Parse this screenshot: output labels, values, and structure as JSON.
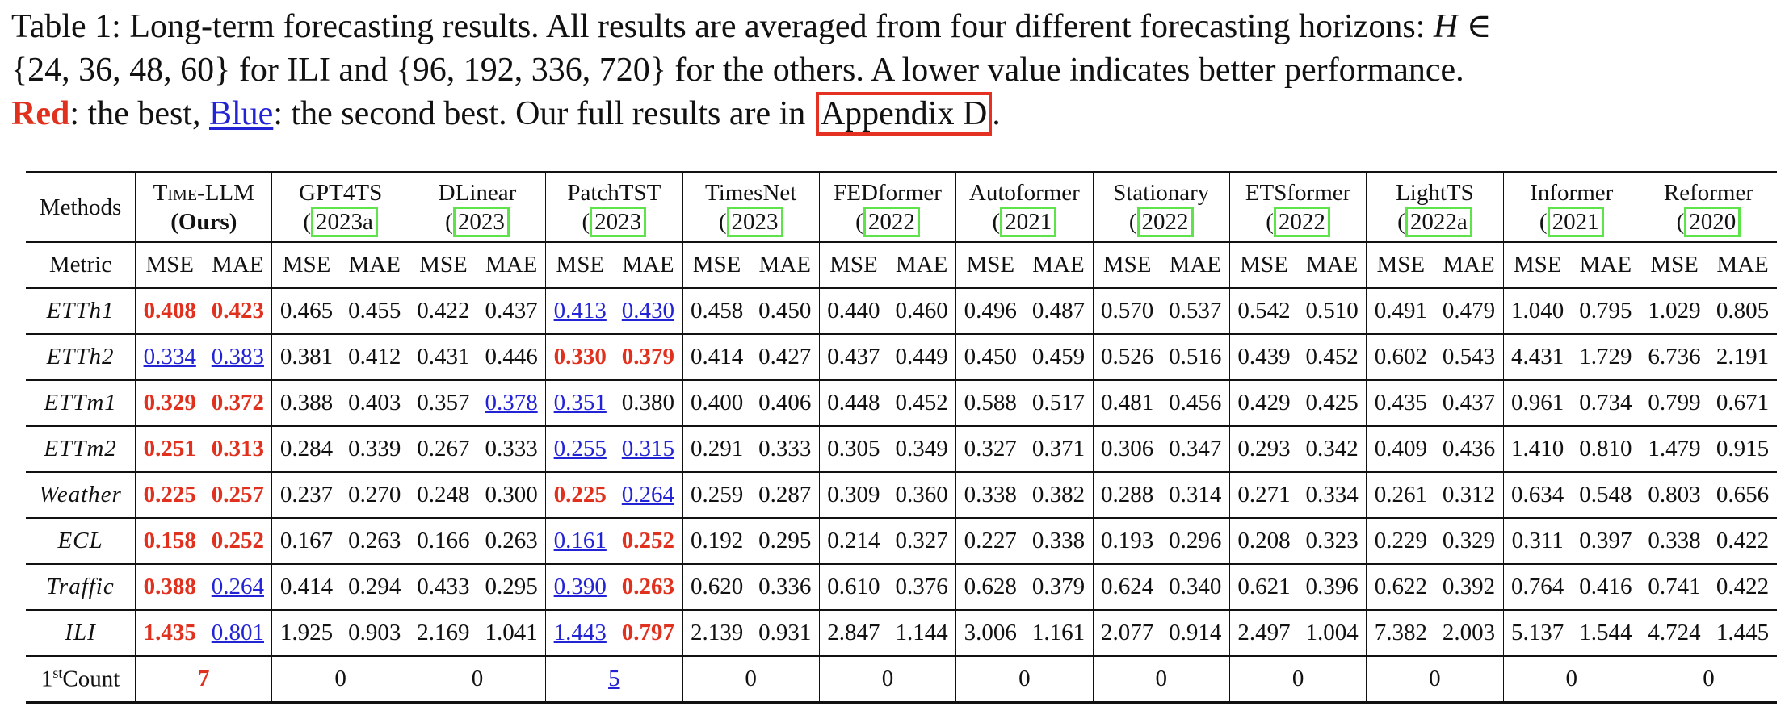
{
  "caption": {
    "line1": "Table 1: Long-term forecasting results. All results are averaged from four different forecasting horizons: ",
    "line1_math": "H ∈",
    "line2_a": "{24, 36, 48, 60}",
    "line2_b": " for ILI and ",
    "line2_c": "{96, 192, 336, 720}",
    "line2_d": " for the others.  A lower value indicates better performance.",
    "line3_red": "Red",
    "line3_a": ": the best, ",
    "line3_blue": "Blue",
    "line3_b": ": the second best. Our full results are in ",
    "line3_link": "Appendix D",
    "line3_end": "."
  },
  "table": {
    "methods_label": "Methods",
    "metric_label": "Metric",
    "mse": "MSE",
    "mae": "MAE",
    "count_label_sup": "st",
    "count_label_pre": "1",
    "count_label_post": "Count",
    "models": [
      {
        "name": "Time-LLM",
        "cite": "(Ours)"
      },
      {
        "name": "GPT4TS",
        "cite": "2023a"
      },
      {
        "name": "DLinear",
        "cite": "2023"
      },
      {
        "name": "PatchTST",
        "cite": "2023"
      },
      {
        "name": "TimesNet",
        "cite": "2023"
      },
      {
        "name": "FEDformer",
        "cite": "2022"
      },
      {
        "name": "Autoformer",
        "cite": "2021"
      },
      {
        "name": "Stationary",
        "cite": "2022"
      },
      {
        "name": "ETSformer",
        "cite": "2022"
      },
      {
        "name": "LightTS",
        "cite": "2022a"
      },
      {
        "name": "Informer",
        "cite": "2021"
      },
      {
        "name": "Reformer",
        "cite": "2020"
      }
    ],
    "rows": [
      {
        "dataset": "ETTh1",
        "values": [
          "0.408",
          "0.423",
          "0.465",
          "0.455",
          "0.422",
          "0.437",
          "0.413",
          "0.430",
          "0.458",
          "0.450",
          "0.440",
          "0.460",
          "0.496",
          "0.487",
          "0.570",
          "0.537",
          "0.542",
          "0.510",
          "0.491",
          "0.479",
          "1.040",
          "0.795",
          "1.029",
          "0.805"
        ],
        "styles": [
          "b",
          "b",
          "",
          "",
          "",
          "",
          "s",
          "s",
          "",
          "",
          "",
          "",
          "",
          "",
          "",
          "",
          "",
          "",
          "",
          "",
          "",
          "",
          "",
          ""
        ]
      },
      {
        "dataset": "ETTh2",
        "values": [
          "0.334",
          "0.383",
          "0.381",
          "0.412",
          "0.431",
          "0.446",
          "0.330",
          "0.379",
          "0.414",
          "0.427",
          "0.437",
          "0.449",
          "0.450",
          "0.459",
          "0.526",
          "0.516",
          "0.439",
          "0.452",
          "0.602",
          "0.543",
          "4.431",
          "1.729",
          "6.736",
          "2.191"
        ],
        "styles": [
          "s",
          "s",
          "",
          "",
          "",
          "",
          "b",
          "b",
          "",
          "",
          "",
          "",
          "",
          "",
          "",
          "",
          "",
          "",
          "",
          "",
          "",
          "",
          "",
          ""
        ]
      },
      {
        "dataset": "ETTm1",
        "values": [
          "0.329",
          "0.372",
          "0.388",
          "0.403",
          "0.357",
          "0.378",
          "0.351",
          "0.380",
          "0.400",
          "0.406",
          "0.448",
          "0.452",
          "0.588",
          "0.517",
          "0.481",
          "0.456",
          "0.429",
          "0.425",
          "0.435",
          "0.437",
          "0.961",
          "0.734",
          "0.799",
          "0.671"
        ],
        "styles": [
          "b",
          "b",
          "",
          "",
          "",
          "s",
          "s",
          "",
          "",
          "",
          "",
          "",
          "",
          "",
          "",
          "",
          "",
          "",
          "",
          "",
          "",
          "",
          "",
          ""
        ]
      },
      {
        "dataset": "ETTm2",
        "values": [
          "0.251",
          "0.313",
          "0.284",
          "0.339",
          "0.267",
          "0.333",
          "0.255",
          "0.315",
          "0.291",
          "0.333",
          "0.305",
          "0.349",
          "0.327",
          "0.371",
          "0.306",
          "0.347",
          "0.293",
          "0.342",
          "0.409",
          "0.436",
          "1.410",
          "0.810",
          "1.479",
          "0.915"
        ],
        "styles": [
          "b",
          "b",
          "",
          "",
          "",
          "",
          "s",
          "s",
          "",
          "",
          "",
          "",
          "",
          "",
          "",
          "",
          "",
          "",
          "",
          "",
          "",
          "",
          "",
          ""
        ]
      },
      {
        "dataset": "Weather",
        "values": [
          "0.225",
          "0.257",
          "0.237",
          "0.270",
          "0.248",
          "0.300",
          "0.225",
          "0.264",
          "0.259",
          "0.287",
          "0.309",
          "0.360",
          "0.338",
          "0.382",
          "0.288",
          "0.314",
          "0.271",
          "0.334",
          "0.261",
          "0.312",
          "0.634",
          "0.548",
          "0.803",
          "0.656"
        ],
        "styles": [
          "b",
          "b",
          "",
          "",
          "",
          "",
          "b",
          "s",
          "",
          "",
          "",
          "",
          "",
          "",
          "",
          "",
          "",
          "",
          "",
          "",
          "",
          "",
          "",
          ""
        ]
      },
      {
        "dataset": "ECL",
        "values": [
          "0.158",
          "0.252",
          "0.167",
          "0.263",
          "0.166",
          "0.263",
          "0.161",
          "0.252",
          "0.192",
          "0.295",
          "0.214",
          "0.327",
          "0.227",
          "0.338",
          "0.193",
          "0.296",
          "0.208",
          "0.323",
          "0.229",
          "0.329",
          "0.311",
          "0.397",
          "0.338",
          "0.422"
        ],
        "styles": [
          "b",
          "b",
          "",
          "",
          "",
          "",
          "s",
          "b",
          "",
          "",
          "",
          "",
          "",
          "",
          "",
          "",
          "",
          "",
          "",
          "",
          "",
          "",
          "",
          ""
        ]
      },
      {
        "dataset": "Traffic",
        "values": [
          "0.388",
          "0.264",
          "0.414",
          "0.294",
          "0.433",
          "0.295",
          "0.390",
          "0.263",
          "0.620",
          "0.336",
          "0.610",
          "0.376",
          "0.628",
          "0.379",
          "0.624",
          "0.340",
          "0.621",
          "0.396",
          "0.622",
          "0.392",
          "0.764",
          "0.416",
          "0.741",
          "0.422"
        ],
        "styles": [
          "b",
          "s",
          "",
          "",
          "",
          "",
          "s",
          "b",
          "",
          "",
          "",
          "",
          "",
          "",
          "",
          "",
          "",
          "",
          "",
          "",
          "",
          "",
          "",
          ""
        ]
      },
      {
        "dataset": "ILI",
        "values": [
          "1.435",
          "0.801",
          "1.925",
          "0.903",
          "2.169",
          "1.041",
          "1.443",
          "0.797",
          "2.139",
          "0.931",
          "2.847",
          "1.144",
          "3.006",
          "1.161",
          "2.077",
          "0.914",
          "2.497",
          "1.004",
          "7.382",
          "2.003",
          "5.137",
          "1.544",
          "4.724",
          "1.445"
        ],
        "styles": [
          "b",
          "s",
          "",
          "",
          "",
          "",
          "s",
          "b",
          "",
          "",
          "",
          "",
          "",
          "",
          "",
          "",
          "",
          "",
          "",
          "",
          "",
          "",
          "",
          ""
        ]
      }
    ],
    "counts": [
      "7",
      "0",
      "0",
      "5",
      "0",
      "0",
      "0",
      "0",
      "0",
      "0",
      "0",
      "0"
    ],
    "count_styles": [
      "b",
      "",
      "",
      "s",
      "",
      "",
      "",
      "",
      "",
      "",
      "",
      ""
    ],
    "colors": {
      "best": "#e0301e",
      "second": "#2323d6",
      "link_box": "#e53121",
      "cite_box": "#5ee34a"
    }
  }
}
